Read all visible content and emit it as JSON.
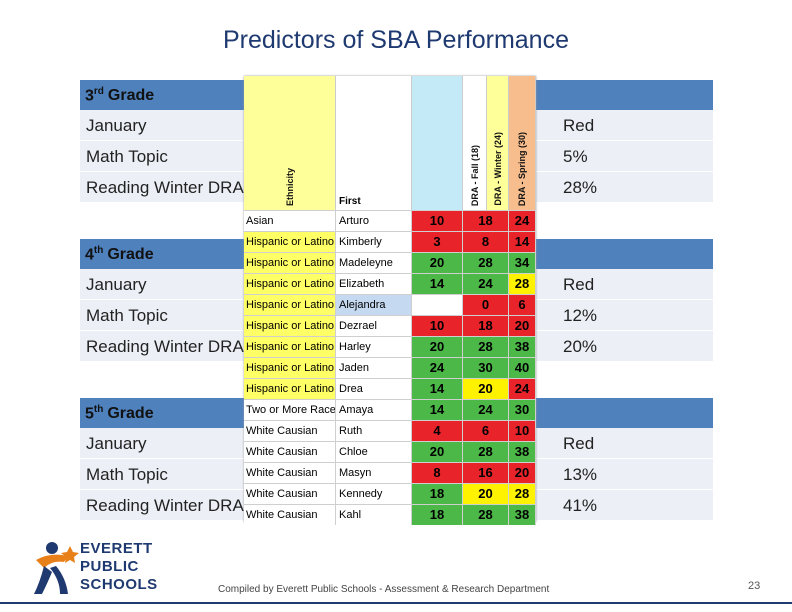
{
  "title": "Predictors of SBA Performance",
  "footer": "Compiled by Everett Public Schools - Assessment & Research Department",
  "page_number": "23",
  "logo": {
    "line1": "EVERETT",
    "line2": "PUBLIC",
    "line3": "SCHOOLS"
  },
  "grades": [
    {
      "name": "3",
      "suffix": "rd",
      "word": "Grade",
      "rows": [
        {
          "label": "January",
          "value": "Red"
        },
        {
          "label": "Math Topic",
          "value": "5%"
        },
        {
          "label": "Reading Winter DRA",
          "value": "28%"
        }
      ]
    },
    {
      "name": "4",
      "suffix": "th",
      "word": "Grade",
      "rows": [
        {
          "label": "January",
          "value": "Red"
        },
        {
          "label": "Math Topic",
          "value": "12%"
        },
        {
          "label": "Reading Winter DRA",
          "value": "20%"
        }
      ]
    },
    {
      "name": "5",
      "suffix": "th",
      "word": "Grade",
      "rows": [
        {
          "label": "January",
          "value": "Red"
        },
        {
          "label": "Math Topic",
          "value": "13%"
        },
        {
          "label": "Reading Winter DRA",
          "value": "41%"
        }
      ]
    }
  ],
  "table": {
    "headers": {
      "ethnicity": "Ethnicity",
      "first": "First",
      "fall": "DRA - Fall (18)",
      "winter": "DRA - Winter (24)",
      "spring": "DRA - Spring (30)"
    },
    "rows": [
      {
        "ethnicity": "Asian",
        "first": "Arturo",
        "fall": "10",
        "winter": "18",
        "spring": "24"
      },
      {
        "ethnicity": "Hispanic or Latino",
        "first": "Kimberly",
        "fall": "3",
        "winter": "8",
        "spring": "14"
      },
      {
        "ethnicity": "Hispanic or Latino",
        "first": "Madeleyne",
        "fall": "20",
        "winter": "28",
        "spring": "34"
      },
      {
        "ethnicity": "Hispanic or Latino",
        "first": "Elizabeth",
        "fall": "14",
        "winter": "24",
        "spring": "28"
      },
      {
        "ethnicity": "Hispanic or Latino",
        "first": "Alejandra",
        "fall": "",
        "winter": "0",
        "spring": "6"
      },
      {
        "ethnicity": "Hispanic or Latino",
        "first": "Dezrael",
        "fall": "10",
        "winter": "18",
        "spring": "20"
      },
      {
        "ethnicity": "Hispanic or Latino",
        "first": "Harley",
        "fall": "20",
        "winter": "28",
        "spring": "38"
      },
      {
        "ethnicity": "Hispanic or Latino",
        "first": "Jaden",
        "fall": "24",
        "winter": "30",
        "spring": "40"
      },
      {
        "ethnicity": "Hispanic or Latino",
        "first": "Drea",
        "fall": "14",
        "winter": "20",
        "spring": "24"
      },
      {
        "ethnicity": "Two or More Races",
        "first": "Amaya",
        "fall": "14",
        "winter": "24",
        "spring": "30"
      },
      {
        "ethnicity": "White Causian",
        "first": "Ruth",
        "fall": "4",
        "winter": "6",
        "spring": "10"
      },
      {
        "ethnicity": "White Causian",
        "first": "Chloe",
        "fall": "20",
        "winter": "28",
        "spring": "38"
      },
      {
        "ethnicity": "White Causian",
        "first": "Masyn",
        "fall": "8",
        "winter": "16",
        "spring": "20"
      },
      {
        "ethnicity": "White Causian",
        "first": "Kennedy",
        "fall": "18",
        "winter": "20",
        "spring": "28"
      },
      {
        "ethnicity": "White Causian",
        "first": "Kahl",
        "fall": "18",
        "winter": "28",
        "spring": "38"
      }
    ]
  },
  "colors": {
    "header_blue": "#4f81bd",
    "band": "#ecf0f6",
    "red": "#e8242a",
    "yellow": "#fff200",
    "green": "#4cb848",
    "light_blue": "#c5d9f1",
    "eth_yellow": "#ffff66"
  }
}
